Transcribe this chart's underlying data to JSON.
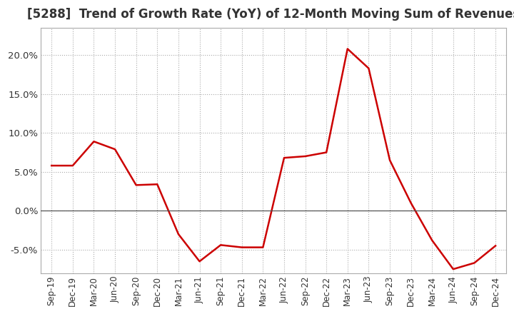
{
  "title": "[5288]  Trend of Growth Rate (YoY) of 12-Month Moving Sum of Revenues",
  "title_fontsize": 12,
  "line_color": "#cc0000",
  "background_color": "#ffffff",
  "grid_color": "#aaaaaa",
  "ylim": [
    -0.08,
    0.235
  ],
  "yticks": [
    -0.05,
    0.0,
    0.05,
    0.1,
    0.15,
    0.2
  ],
  "ytick_labels": [
    "-5.0%",
    "0.0%",
    "5.0%",
    "10.0%",
    "15.0%",
    "20.0%"
  ],
  "x_labels": [
    "Sep-19",
    "Dec-19",
    "Mar-20",
    "Jun-20",
    "Sep-20",
    "Dec-20",
    "Mar-21",
    "Jun-21",
    "Sep-21",
    "Dec-21",
    "Mar-22",
    "Jun-22",
    "Sep-22",
    "Dec-22",
    "Mar-23",
    "Jun-23",
    "Sep-23",
    "Dec-23",
    "Mar-24",
    "Jun-24",
    "Sep-24",
    "Dec-24"
  ],
  "values": [
    0.058,
    0.058,
    0.089,
    0.079,
    0.033,
    0.034,
    -0.03,
    -0.065,
    -0.044,
    -0.047,
    -0.047,
    0.068,
    0.07,
    0.075,
    0.208,
    0.183,
    0.065,
    0.01,
    -0.038,
    -0.075,
    -0.067,
    -0.045
  ]
}
